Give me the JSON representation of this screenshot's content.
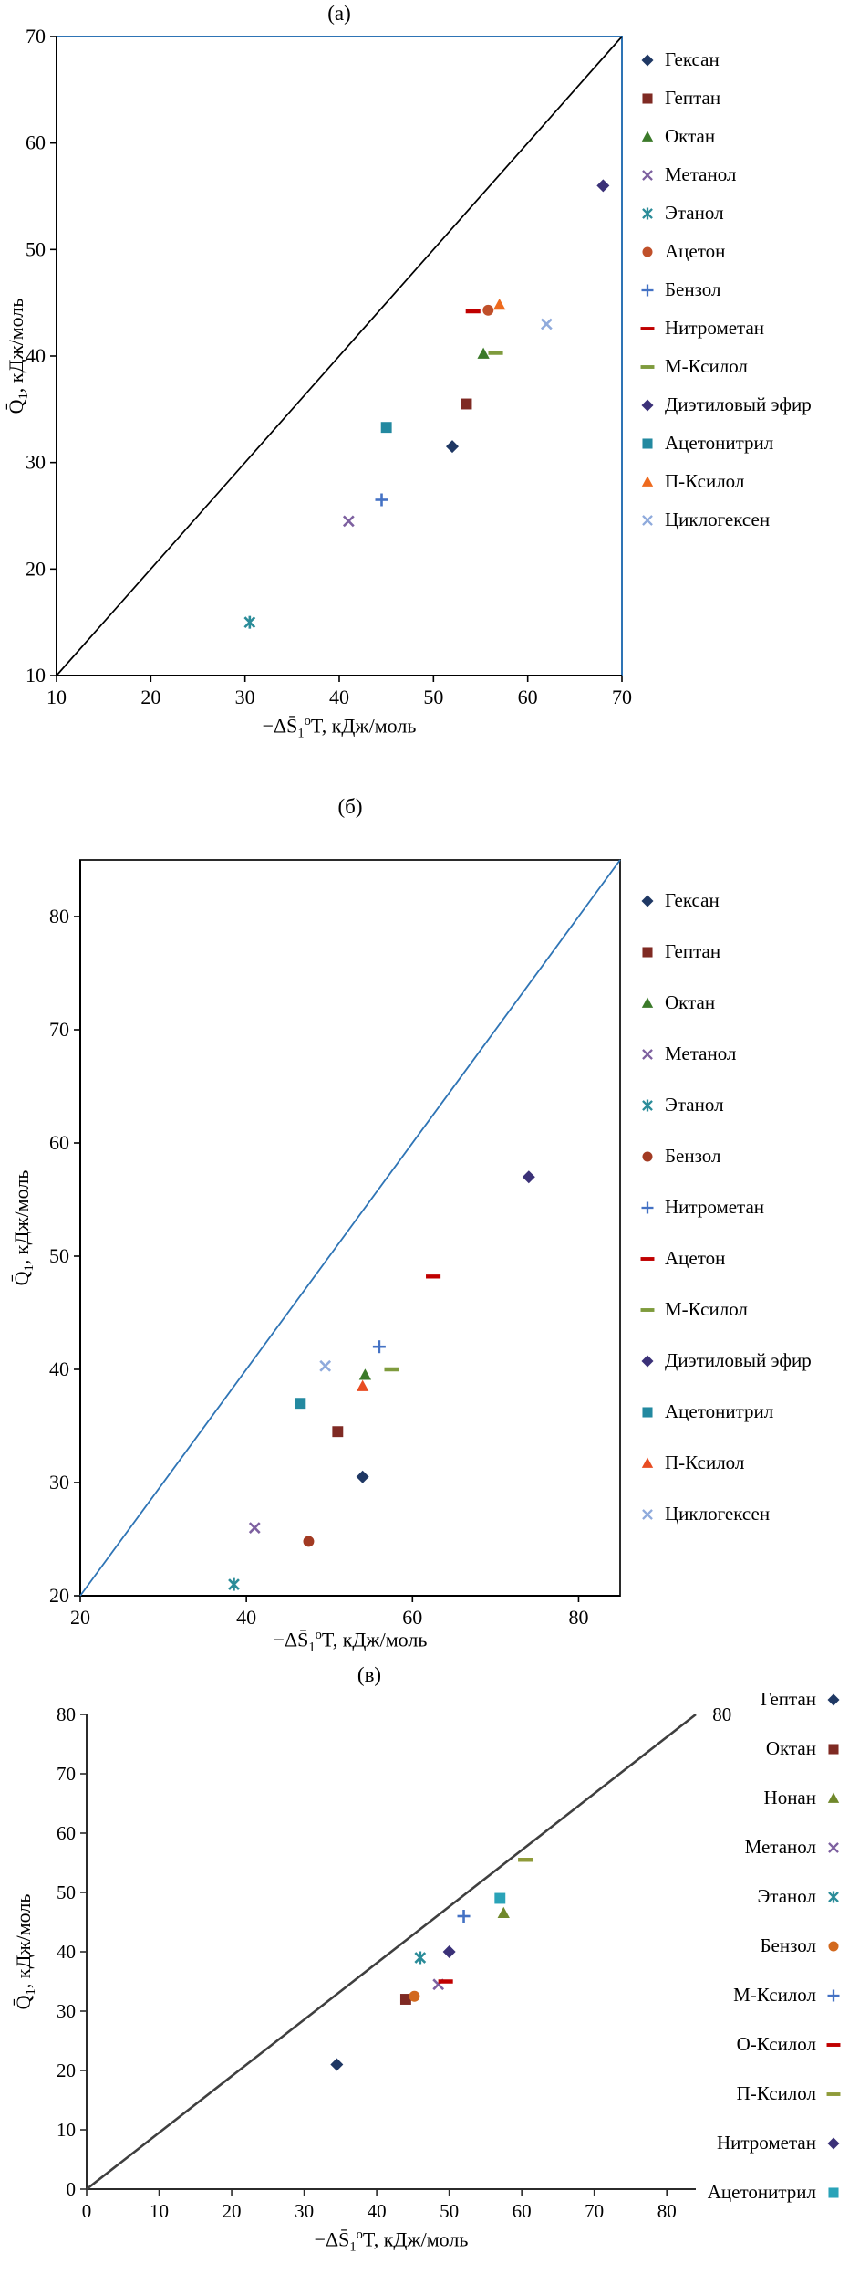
{
  "chart_data": [
    {
      "type": "scatter",
      "panel": "a",
      "title": "(а)",
      "xlabel": {
        "main": "−ΔS̄",
        "sub": "1",
        "sup": "o",
        "rest": "T, кДж/моль"
      },
      "ylabel": {
        "main": "Q̄",
        "sub": "1",
        "rest": ", кДж/моль"
      },
      "xlim": [
        10,
        70
      ],
      "ylim": [
        10,
        70
      ],
      "xticks": [
        10,
        20,
        30,
        40,
        50,
        60,
        70
      ],
      "yticks": [
        10,
        20,
        30,
        40,
        50,
        60,
        70
      ],
      "grid": false,
      "frame": "box",
      "frame_color": "#2e74b5",
      "axis_color": "#000000",
      "diagonal": {
        "from": [
          10,
          10
        ],
        "to": [
          70,
          70
        ],
        "color": "#000000",
        "width": 1.7
      },
      "legend_position": "right",
      "series": [
        {
          "name": "Гексан",
          "marker": "diamond",
          "color": "#1f3864",
          "points": [
            [
              52,
              31.5
            ]
          ]
        },
        {
          "name": "Гептан",
          "marker": "square",
          "color": "#7f2a23",
          "points": [
            [
              53.5,
              35.5
            ]
          ]
        },
        {
          "name": "Октан",
          "marker": "triangle",
          "color": "#3b7a2a",
          "points": [
            [
              55.3,
              40.2
            ]
          ]
        },
        {
          "name": "Метанол",
          "marker": "x",
          "color": "#7d60a0",
          "points": [
            [
              41,
              24.5
            ]
          ]
        },
        {
          "name": "Этанол",
          "marker": "star",
          "color": "#2b8c99",
          "points": [
            [
              30.5,
              15
            ]
          ]
        },
        {
          "name": "Ацетон",
          "marker": "circle",
          "color": "#c0502a",
          "points": [
            [
              55.8,
              44.3
            ]
          ]
        },
        {
          "name": "Бензол",
          "marker": "plus",
          "color": "#4472c4",
          "points": [
            [
              44.5,
              26.5
            ]
          ]
        },
        {
          "name": "Нитрометан",
          "marker": "dash",
          "color": "#c00000",
          "points": [
            [
              54.2,
              44.2
            ]
          ]
        },
        {
          "name": "М-Ксилол",
          "marker": "dash",
          "color": "#7f9b3d",
          "points": [
            [
              56.6,
              40.3
            ]
          ]
        },
        {
          "name": "Диэтиловый эфир",
          "marker": "diamond",
          "color": "#3b3178",
          "points": [
            [
              68,
              56
            ]
          ]
        },
        {
          "name": "Ацетонитрил",
          "marker": "square",
          "color": "#2389a0",
          "points": [
            [
              45,
              33.3
            ]
          ]
        },
        {
          "name": "П-Ксилол",
          "marker": "triangle",
          "color": "#ee6a1e",
          "points": [
            [
              57,
              44.8
            ]
          ]
        },
        {
          "name": "Циклогексен",
          "marker": "x",
          "color": "#8faadc",
          "points": [
            [
              62,
              43
            ]
          ]
        }
      ]
    },
    {
      "type": "scatter",
      "panel": "b",
      "title": "(б)",
      "xlabel": {
        "main": "−ΔS̄",
        "sub": "1",
        "sup": "o",
        "rest": "T, кДж/моль"
      },
      "ylabel": {
        "main": "Q̄",
        "sub": "1",
        "rest": ", кДж/моль"
      },
      "xlim": [
        20,
        85
      ],
      "ylim": [
        20,
        85
      ],
      "xticks": [
        20,
        40,
        60,
        80
      ],
      "yticks": [
        20,
        30,
        40,
        50,
        60,
        70,
        80
      ],
      "grid": false,
      "frame": "box",
      "frame_color": "#2b2b2b",
      "axis_color": "#000000",
      "diagonal": {
        "from": [
          20,
          20
        ],
        "to": [
          85,
          85
        ],
        "color": "#2e74b5",
        "width": 1.8
      },
      "legend_position": "right",
      "series": [
        {
          "name": "Гексан",
          "marker": "diamond",
          "color": "#1f3864",
          "points": [
            [
              54,
              30.5
            ]
          ]
        },
        {
          "name": "Гептан",
          "marker": "square",
          "color": "#7f2a23",
          "points": [
            [
              51,
              34.5
            ]
          ]
        },
        {
          "name": "Октан",
          "marker": "triangle",
          "color": "#3b7a2a",
          "points": [
            [
              54.3,
              39.5
            ]
          ]
        },
        {
          "name": "Метанол",
          "marker": "x",
          "color": "#7d60a0",
          "points": [
            [
              41,
              26
            ]
          ]
        },
        {
          "name": "Этанол",
          "marker": "star",
          "color": "#2b8c99",
          "points": [
            [
              38.5,
              21
            ]
          ]
        },
        {
          "name": "Бензол",
          "marker": "circle",
          "color": "#a23a22",
          "points": [
            [
              47.5,
              24.8
            ]
          ]
        },
        {
          "name": "Нитрометан",
          "marker": "plus",
          "color": "#4472c4",
          "points": [
            [
              56,
              42
            ]
          ]
        },
        {
          "name": "Ацетон",
          "marker": "dash",
          "color": "#c00000",
          "points": [
            [
              62.5,
              48.2
            ]
          ]
        },
        {
          "name": "М-Ксилол",
          "marker": "dash",
          "color": "#7f9b3d",
          "points": [
            [
              57.5,
              40
            ]
          ]
        },
        {
          "name": "Диэтиловый эфир",
          "marker": "diamond",
          "color": "#3b3178",
          "points": [
            [
              74,
              57
            ]
          ]
        },
        {
          "name": "Ацетонитрил",
          "marker": "square",
          "color": "#2389a0",
          "points": [
            [
              46.5,
              37
            ]
          ]
        },
        {
          "name": "П-Ксилол",
          "marker": "triangle",
          "color": "#e84c22",
          "points": [
            [
              54,
              38.5
            ]
          ]
        },
        {
          "name": "Циклогексен",
          "marker": "x",
          "color": "#8faadc",
          "points": [
            [
              49.5,
              40.3
            ]
          ]
        }
      ]
    },
    {
      "type": "scatter",
      "panel": "v",
      "title": "(в)",
      "xlabel": {
        "main": "−ΔS̄",
        "sub": "1",
        "sup": "o",
        "rest": "T, кДж/моль"
      },
      "ylabel": {
        "main": "Q̄",
        "sub": "1",
        "rest": ", кДж/моль"
      },
      "xlim": [
        0,
        84
      ],
      "ylim": [
        0,
        80
      ],
      "xticks": [
        0,
        10,
        20,
        30,
        40,
        50,
        60,
        70,
        80
      ],
      "yticks": [
        0,
        10,
        20,
        30,
        40,
        50,
        60,
        70,
        80
      ],
      "grid": false,
      "frame": "axes",
      "frame_color": "#2b2b2b",
      "axis_color": "#2b2b2b",
      "diagonal": {
        "from": [
          0,
          0
        ],
        "to": [
          84,
          80
        ],
        "color": "#3f3f3f",
        "width": 2.6
      },
      "annotations": [
        {
          "text": "80",
          "x": 86.3,
          "y": 80
        }
      ],
      "legend_position": "right",
      "series": [
        {
          "name": "Гептан",
          "marker": "diamond",
          "color": "#1f3864",
          "points": [
            [
              34.5,
              21
            ]
          ]
        },
        {
          "name": "Октан",
          "marker": "square",
          "color": "#7f2a23",
          "points": [
            [
              44,
              32
            ]
          ]
        },
        {
          "name": "Нонан",
          "marker": "triangle",
          "color": "#70882b",
          "points": [
            [
              57.5,
              46.5
            ]
          ]
        },
        {
          "name": "Метанол",
          "marker": "x",
          "color": "#7d60a0",
          "points": [
            [
              48.5,
              34.5
            ]
          ]
        },
        {
          "name": "Этанол",
          "marker": "star",
          "color": "#2b8c99",
          "points": [
            [
              46,
              39
            ]
          ]
        },
        {
          "name": "Бензол",
          "marker": "circle",
          "color": "#d2691e",
          "points": [
            [
              45.2,
              32.5
            ]
          ]
        },
        {
          "name": "М-Ксилол",
          "marker": "plus",
          "color": "#4472c4",
          "points": [
            [
              52,
              46
            ]
          ]
        },
        {
          "name": "О-Ксилол",
          "marker": "dash",
          "color": "#c00000",
          "points": [
            [
              49.5,
              35
            ]
          ]
        },
        {
          "name": "П-Ксилол",
          "marker": "dash",
          "color": "#8f9b3a",
          "points": [
            [
              60.5,
              55.5
            ]
          ]
        },
        {
          "name": "Нитрометан",
          "marker": "diamond",
          "color": "#3b3178",
          "points": [
            [
              50,
              40
            ]
          ]
        },
        {
          "name": "Ацетонитрил",
          "marker": "square",
          "color": "#2aa3b8",
          "points": [
            [
              57,
              49
            ]
          ]
        }
      ]
    }
  ]
}
